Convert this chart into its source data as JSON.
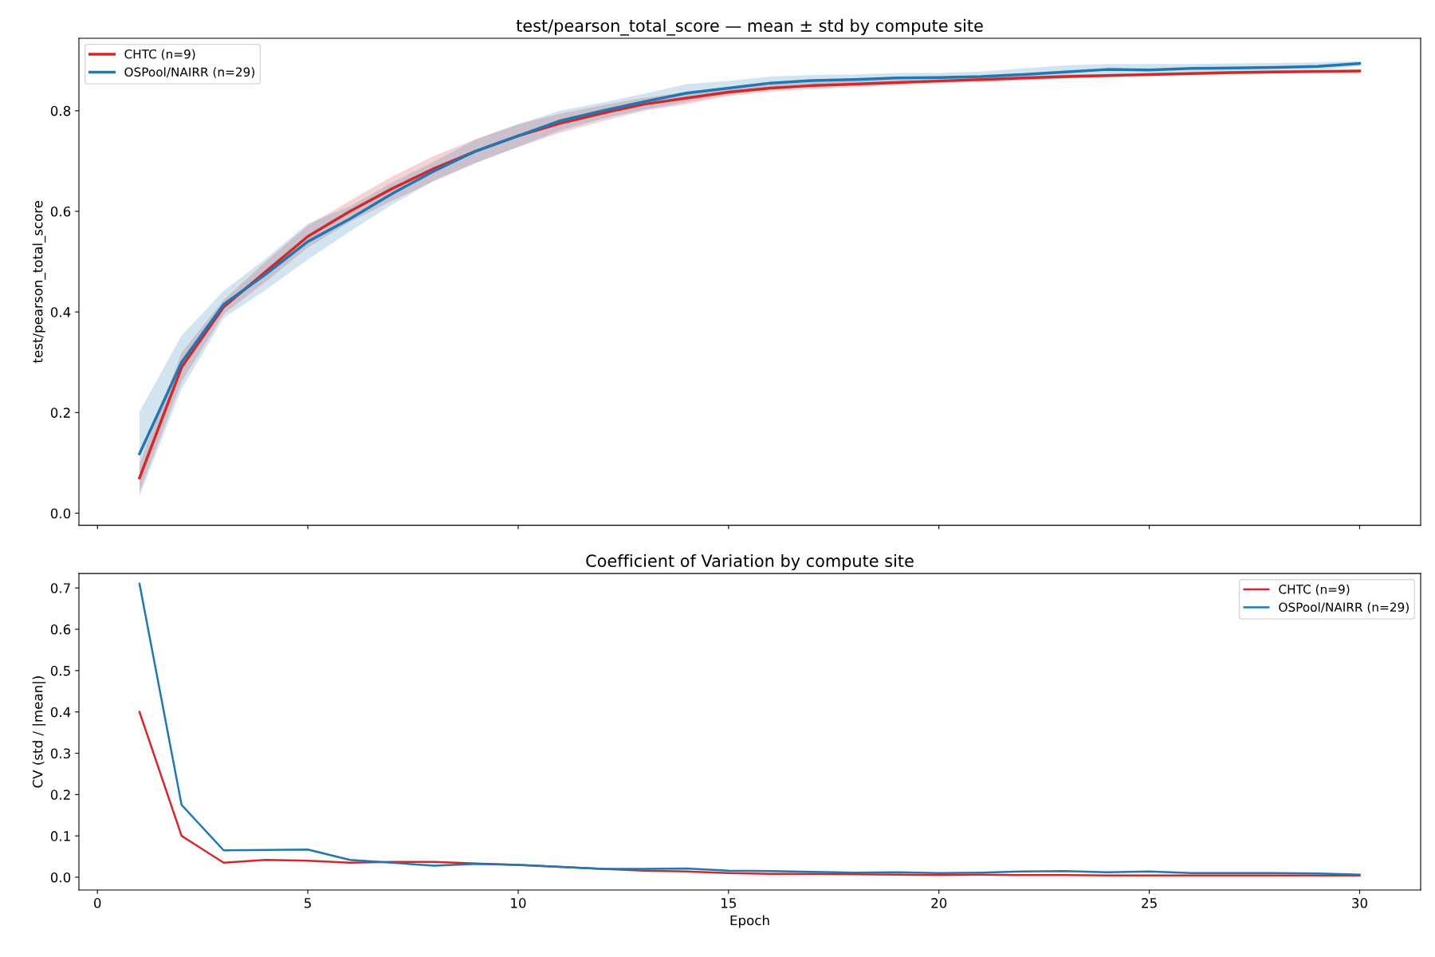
{
  "chart_data": [
    {
      "type": "line",
      "title": "test/pearson_total_score — mean ± std by compute site",
      "ylabel": "test/pearson_total_score",
      "x": [
        1,
        2,
        3,
        4,
        5,
        6,
        7,
        8,
        9,
        10,
        11,
        12,
        13,
        14,
        15,
        16,
        17,
        18,
        19,
        20,
        21,
        22,
        23,
        24,
        25,
        26,
        27,
        28,
        29,
        30
      ],
      "xlim": [
        -0.44,
        31.45
      ],
      "xticks": [
        {
          "value": 0,
          "label": null
        },
        {
          "value": 5,
          "label": null
        },
        {
          "value": 10,
          "label": null
        },
        {
          "value": 15,
          "label": null
        },
        {
          "value": 20,
          "label": null
        },
        {
          "value": 25,
          "label": null
        },
        {
          "value": 30,
          "label": null
        }
      ],
      "ylim": [
        -0.024,
        0.944
      ],
      "yticks": [
        {
          "value": 0,
          "label": "0.0"
        },
        0.2,
        0.4,
        0.6,
        0.8
      ],
      "tick_labels": "y",
      "legend": "top left",
      "grid": false,
      "series": [
        {
          "name": "CHTC (n=9)",
          "color": "#d62728",
          "values": [
            0.07,
            0.29,
            0.41,
            0.48,
            0.55,
            0.6,
            0.645,
            0.685,
            0.72,
            0.75,
            0.775,
            0.795,
            0.813,
            0.825,
            0.837,
            0.845,
            0.85,
            0.853,
            0.856,
            0.859,
            0.862,
            0.865,
            0.868,
            0.87,
            0.872,
            0.874,
            0.876,
            0.877,
            0.878,
            0.879
          ],
          "lower": [
            0.042,
            0.261,
            0.396,
            0.46,
            0.528,
            0.579,
            0.621,
            0.66,
            0.696,
            0.728,
            0.756,
            0.779,
            0.8,
            0.813,
            0.829,
            0.838,
            0.843,
            0.847,
            0.851,
            0.855,
            0.857,
            0.861,
            0.864,
            0.867,
            0.869,
            0.871,
            0.873,
            0.874,
            0.875,
            0.875
          ],
          "upper": [
            0.098,
            0.319,
            0.424,
            0.5,
            0.572,
            0.621,
            0.669,
            0.71,
            0.744,
            0.773,
            0.794,
            0.811,
            0.826,
            0.837,
            0.845,
            0.852,
            0.857,
            0.859,
            0.861,
            0.863,
            0.867,
            0.869,
            0.872,
            0.873,
            0.875,
            0.877,
            0.879,
            0.88,
            0.881,
            0.883
          ]
        },
        {
          "name": "OSPool/NAIRR (n=29)",
          "color": "#1f77b4",
          "values": [
            0.118,
            0.3,
            0.415,
            0.475,
            0.54,
            0.585,
            0.635,
            0.68,
            0.72,
            0.75,
            0.78,
            0.8,
            0.818,
            0.835,
            0.845,
            0.855,
            0.86,
            0.862,
            0.865,
            0.866,
            0.868,
            0.872,
            0.877,
            0.882,
            0.881,
            0.884,
            0.885,
            0.886,
            0.888,
            0.894
          ],
          "lower": [
            0.034,
            0.247,
            0.388,
            0.444,
            0.504,
            0.56,
            0.613,
            0.661,
            0.697,
            0.728,
            0.761,
            0.784,
            0.802,
            0.817,
            0.832,
            0.842,
            0.849,
            0.853,
            0.855,
            0.857,
            0.859,
            0.86,
            0.864,
            0.871,
            0.869,
            0.875,
            0.876,
            0.877,
            0.88,
            0.889
          ],
          "upper": [
            0.202,
            0.353,
            0.442,
            0.506,
            0.576,
            0.61,
            0.657,
            0.699,
            0.743,
            0.773,
            0.8,
            0.816,
            0.834,
            0.853,
            0.859,
            0.868,
            0.871,
            0.872,
            0.875,
            0.875,
            0.878,
            0.884,
            0.89,
            0.893,
            0.893,
            0.893,
            0.894,
            0.895,
            0.896,
            0.899
          ]
        }
      ]
    },
    {
      "type": "line",
      "title": "Coefficient of Variation by compute site",
      "xlabel": "Epoch",
      "ylabel": "CV (std / |mean|)",
      "x": [
        1,
        2,
        3,
        4,
        5,
        6,
        7,
        8,
        9,
        10,
        11,
        12,
        13,
        14,
        15,
        16,
        17,
        18,
        19,
        20,
        21,
        22,
        23,
        24,
        25,
        26,
        27,
        28,
        29,
        30
      ],
      "xlim": [
        -0.44,
        31.45
      ],
      "xticks": [
        0,
        5,
        10,
        15,
        20,
        25,
        30
      ],
      "ylim": [
        -0.031,
        0.735
      ],
      "yticks": [
        {
          "value": 0,
          "label": "0.0"
        },
        0.1,
        0.2,
        0.3,
        0.4,
        0.5,
        0.6,
        0.7
      ],
      "legend": "top right",
      "grid": false,
      "series": [
        {
          "name": "CHTC (n=9)",
          "color": "#d62728",
          "values": [
            0.4,
            0.1,
            0.035,
            0.042,
            0.04,
            0.035,
            0.037,
            0.037,
            0.033,
            0.03,
            0.025,
            0.02,
            0.016,
            0.014,
            0.01,
            0.008,
            0.008,
            0.007,
            0.006,
            0.005,
            0.006,
            0.005,
            0.005,
            0.004,
            0.004,
            0.004,
            0.004,
            0.004,
            0.004,
            0.004
          ]
        },
        {
          "name": "OSPool/NAIRR (n=29)",
          "color": "#1f77b4",
          "values": [
            0.71,
            0.175,
            0.065,
            0.066,
            0.067,
            0.042,
            0.035,
            0.028,
            0.032,
            0.03,
            0.025,
            0.02,
            0.02,
            0.021,
            0.016,
            0.015,
            0.013,
            0.011,
            0.012,
            0.01,
            0.011,
            0.014,
            0.015,
            0.012,
            0.014,
            0.01,
            0.01,
            0.01,
            0.009,
            0.006
          ]
        }
      ]
    }
  ]
}
